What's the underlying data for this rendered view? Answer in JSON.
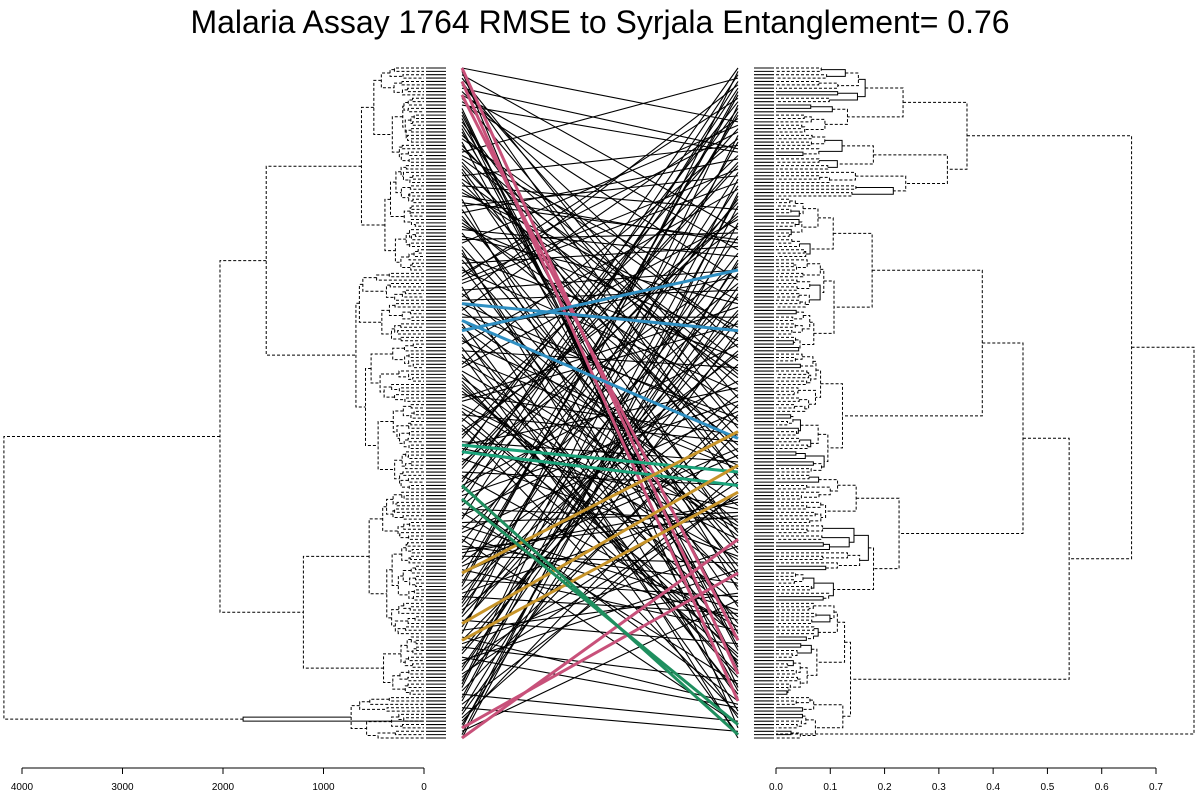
{
  "chart_data": {
    "type": "tanglegram",
    "title": "Malaria Assay 1764 RMSE to Syrjala Entanglement= 0.76",
    "left_dendrogram": {
      "axis": {
        "ticks": [
          4000,
          3000,
          2000,
          1000,
          0
        ],
        "tick_labels": [
          "4000",
          "3000",
          "2000",
          "1000",
          "0"
        ],
        "xlim": [
          4000,
          0
        ]
      },
      "leaf_count": 200,
      "top_merges": [
        {
          "height": 4180,
          "description": "root split"
        },
        {
          "height": 2030,
          "description": "upper block"
        },
        {
          "height": 1800,
          "description": "bottom small cluster"
        },
        {
          "height": 1570,
          "description": "upper sub-block"
        },
        {
          "height": 1200,
          "description": "middle block"
        },
        {
          "height": 780,
          "description": "top cluster"
        }
      ]
    },
    "right_dendrogram": {
      "axis": {
        "ticks": [
          0.0,
          0.1,
          0.2,
          0.3,
          0.4,
          0.5,
          0.6,
          0.7
        ],
        "tick_labels": [
          "0.0",
          "0.1",
          "0.2",
          "0.3",
          "0.4",
          "0.5",
          "0.6",
          "0.7"
        ],
        "xlim": [
          0,
          0.7
        ]
      },
      "leaf_count": 200,
      "top_merges": [
        {
          "height": 0.77,
          "description": "root split"
        },
        {
          "height": 0.655,
          "description": "main block"
        },
        {
          "height": 0.56,
          "description": "top cluster"
        },
        {
          "height": 0.54,
          "description": "lower block"
        },
        {
          "height": 0.455,
          "description": "middle cluster"
        },
        {
          "height": 0.42,
          "description": "bottom cluster"
        }
      ]
    },
    "connector_colors": {
      "default": "#000000",
      "highlight": [
        "#c8517a",
        "#2f8fc2",
        "#1aa37a",
        "#c8952a",
        "#1f8f5f"
      ]
    },
    "grid": false,
    "legend": "none"
  }
}
